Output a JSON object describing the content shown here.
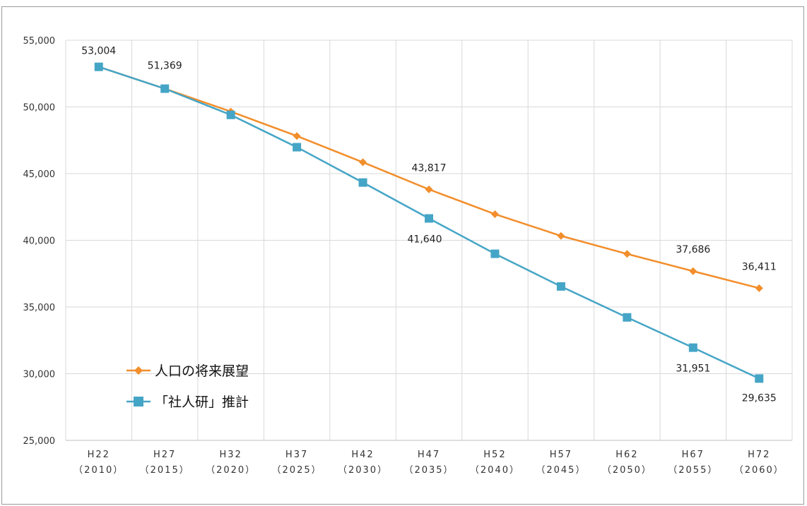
{
  "chart_data": {
    "type": "line",
    "categories": [
      [
        "H22",
        "（2010）"
      ],
      [
        "H27",
        "（2015）"
      ],
      [
        "H32",
        "（2020）"
      ],
      [
        "H37",
        "（2025）"
      ],
      [
        "H42",
        "（2030）"
      ],
      [
        "H47",
        "（2035）"
      ],
      [
        "H52",
        "（2040）"
      ],
      [
        "H57",
        "（2045）"
      ],
      [
        "H62",
        "（2050）"
      ],
      [
        "H67",
        "（2055）"
      ],
      [
        "H72",
        "（2060）"
      ]
    ],
    "ylim": [
      25000,
      55000
    ],
    "yticks": [
      25000,
      30000,
      35000,
      40000,
      45000,
      50000,
      55000
    ],
    "ytick_labels": [
      "25,000",
      "30,000",
      "35,000",
      "40,000",
      "45,000",
      "50,000",
      "55,000"
    ],
    "grid": true,
    "legend_position": "left",
    "series": [
      {
        "name": "人口の将来展望",
        "marker": "diamond",
        "color": "#F28E2B",
        "values": [
          53004,
          51369,
          49650,
          47820,
          45850,
          43817,
          41960,
          40330,
          38980,
          37686,
          36411
        ],
        "labels": {
          "0": "53,004",
          "1": "51,369",
          "5": "43,817",
          "9": "37,686",
          "10": "36,411"
        }
      },
      {
        "name": "「社人研」推計",
        "marker": "square",
        "color": "#45A5C6",
        "values": [
          53004,
          51369,
          49400,
          46980,
          44330,
          41640,
          38990,
          36540,
          34220,
          31951,
          29635
        ],
        "labels": {
          "5": "41,640",
          "9": "31,951",
          "10": "29,635"
        }
      }
    ]
  }
}
